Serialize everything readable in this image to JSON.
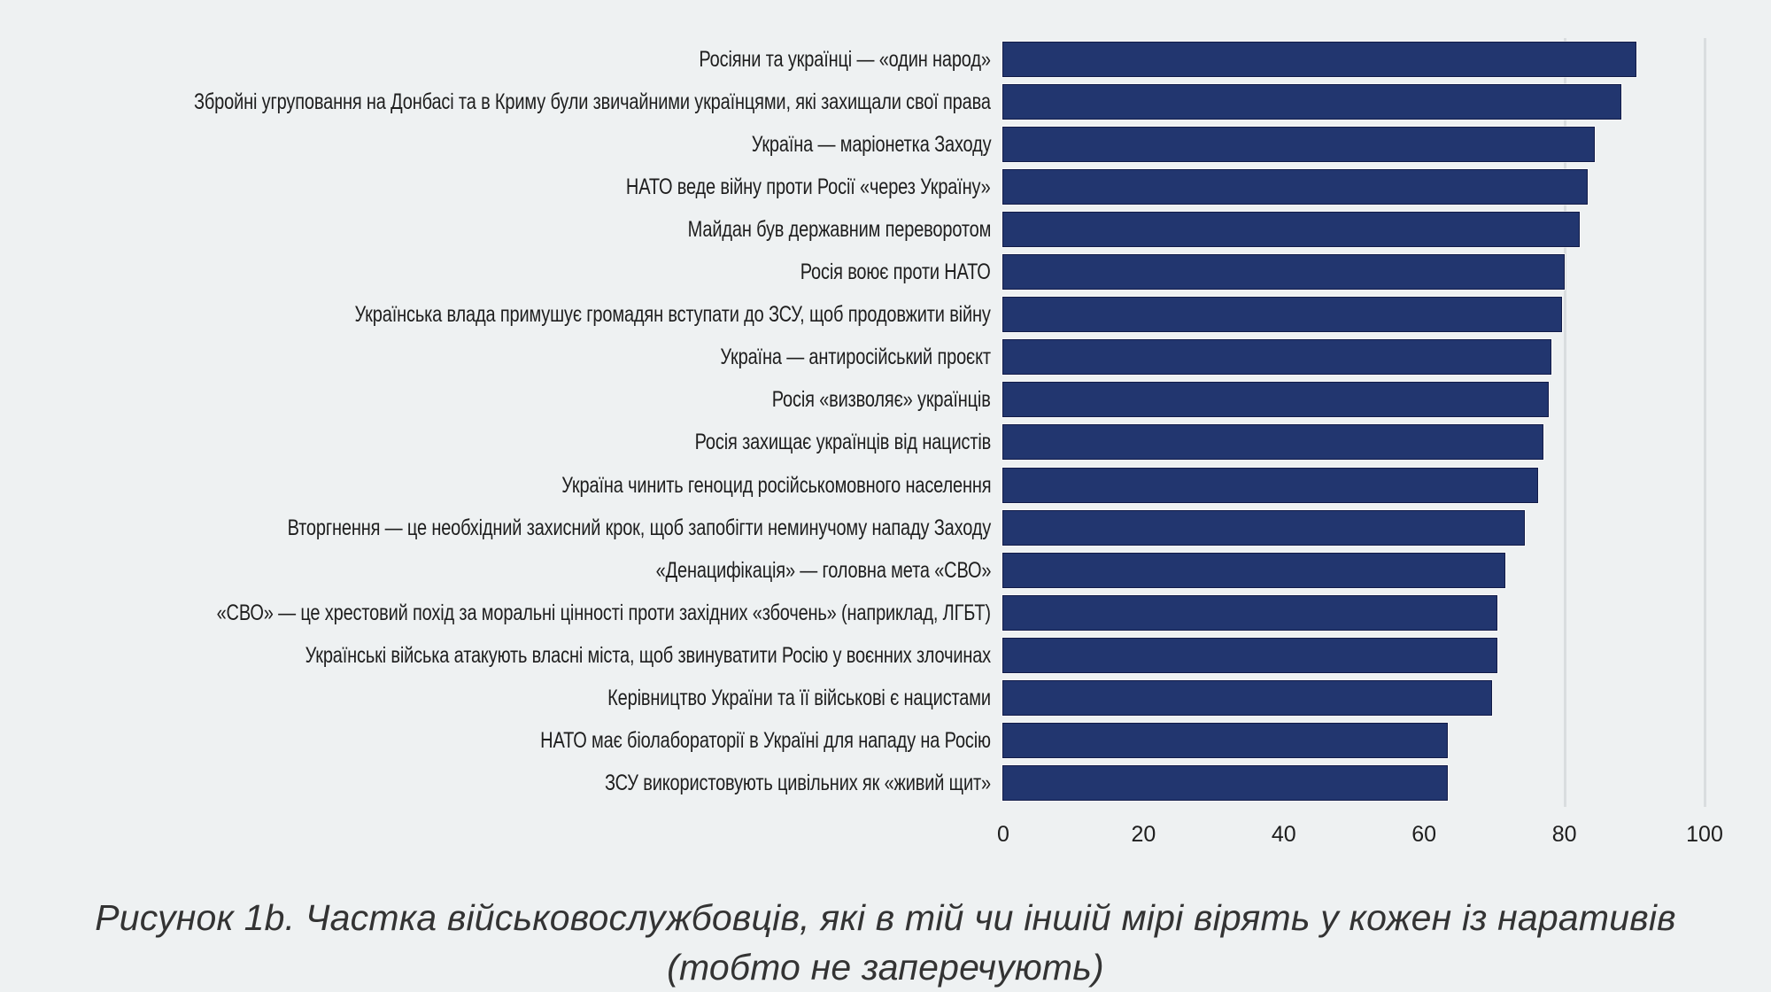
{
  "chart_data": {
    "type": "bar",
    "orientation": "horizontal",
    "title": "Рисунок 1b. Частка військовослужбовців, які в тій чи іншій мірі вірять у кожен із наративів (тобто не заперечують)",
    "xlabel": "",
    "ylabel": "",
    "xlim": [
      0,
      100
    ],
    "x_ticks": [
      "0",
      "20",
      "40",
      "60",
      "80",
      "100"
    ],
    "grid": "vertical gridlines at 80 and 100",
    "legend": null,
    "bar_color": "#22366f",
    "categories": [
      "Росіяни та українці — «один народ»",
      "Збройні угруповання на Донбасі та в Криму були звичайними українцями, які захищали свої права",
      "Україна — маріонетка Заходу",
      "НАТО веде війну проти Росії «через Україну»",
      "Майдан був державним переворотом",
      "Росія воює проти НАТО",
      "Українська влада примушує громадян вступати до ЗСУ, щоб продовжити війну",
      "Україна — антиросійський проєкт",
      "Росія «визволяє» українців",
      "Росія захищає українців від нацистів",
      "Україна чинить геноцид російськомовного населення",
      "Вторгнення — це необхідний захисний крок, щоб запобігти неминучому нападу Заходу",
      "«Денацифікація» — головна мета «СВО»",
      "«СВО» — це хрестовий похід за моральні цінності проти західних «збочень» (наприклад, ЛГБТ)",
      "Українські війська атакують власні міста, щоб звинуватити Росію у воєнних злочинах",
      "Керівництво України та її військові є нацистами",
      "НАТО має біолабораторії в Україні для нападу на Росію",
      "ЗСУ використовують цивільних як «живий щит»"
    ],
    "values": [
      90.4,
      88.2,
      84.5,
      83.5,
      82.3,
      80.2,
      79.8,
      78.3,
      77.9,
      77.1,
      76.4,
      74.5,
      71.7,
      70.6,
      70.6,
      69.8,
      63.5,
      63.5
    ]
  },
  "caption": {
    "line1": "Рисунок 1b. Частка військовослужбовців, які в тій чи іншій мірі вірять у кожен із наративів",
    "line2": "(тобто не заперечують)"
  },
  "colors": {
    "background": "#eef1f2",
    "bar": "#22366f",
    "bar_border": "#131c48",
    "gridline": "#d9dddf",
    "text": "#1e1e1e"
  }
}
